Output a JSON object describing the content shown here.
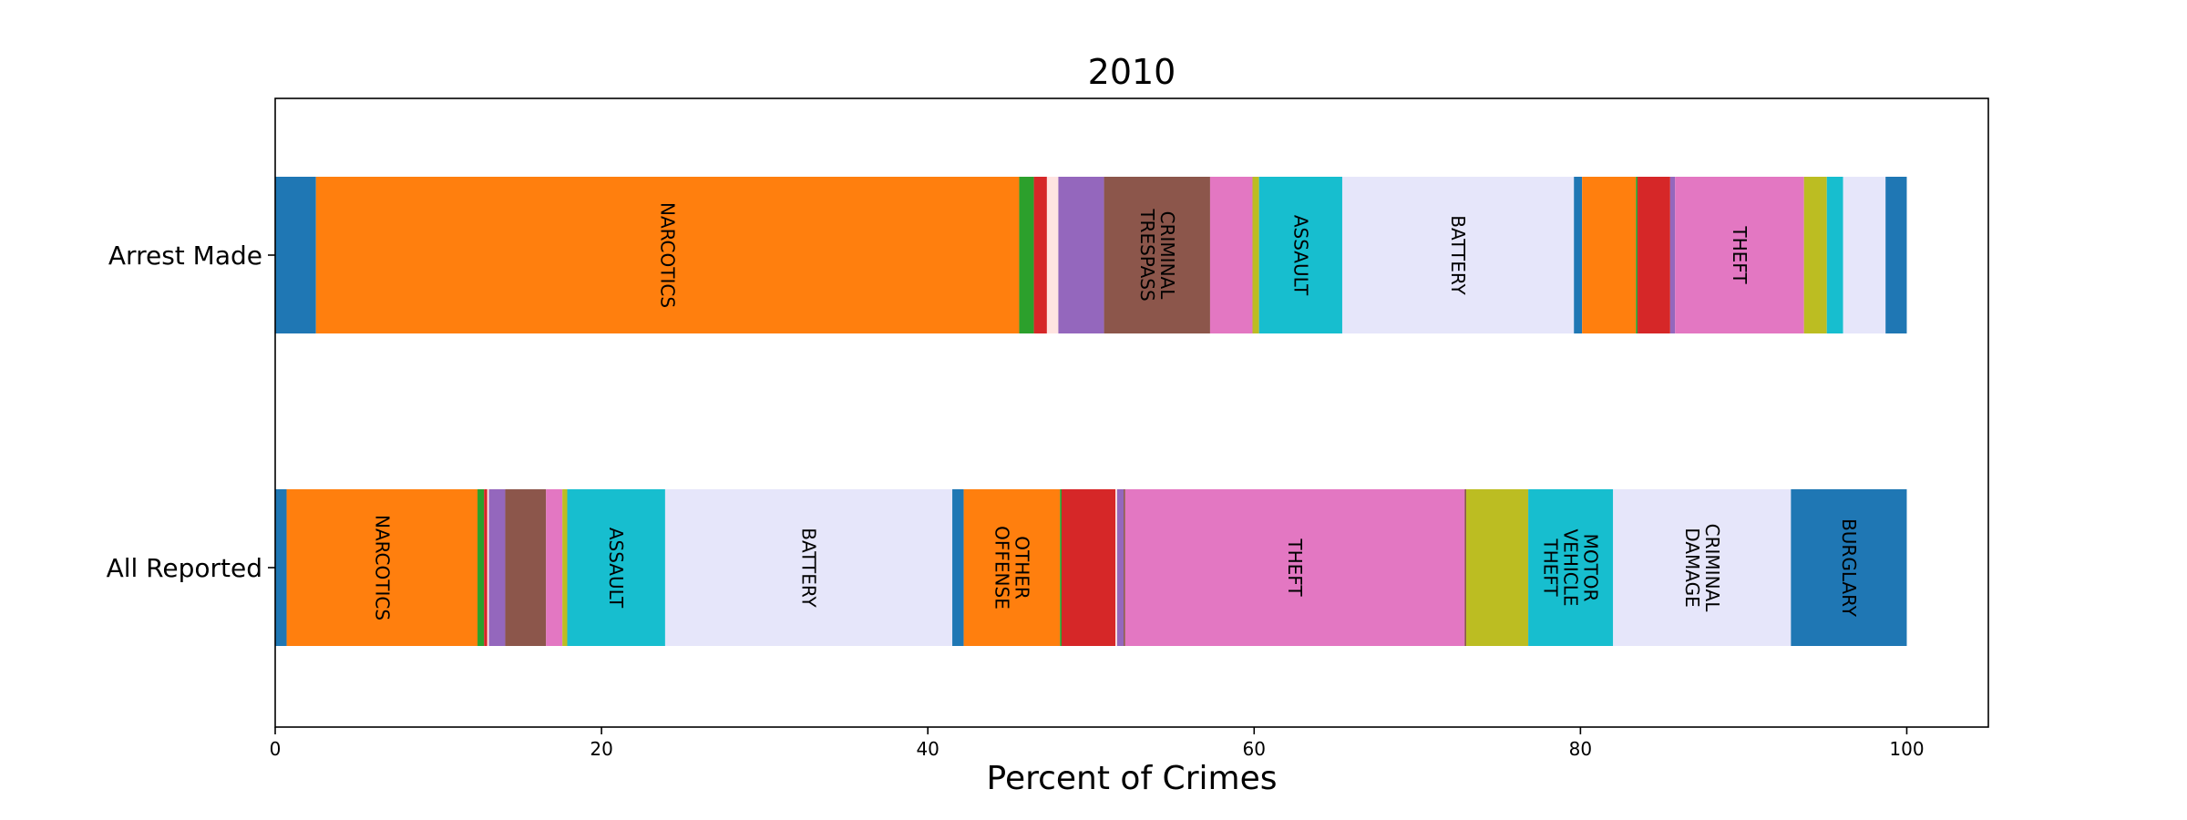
{
  "chart_data": {
    "type": "bar",
    "orientation": "horizontal",
    "stacked": true,
    "title": "2010",
    "xlabel": "Percent of Crimes",
    "ylabel": "",
    "xlim": [
      0,
      105
    ],
    "xticks": [
      0,
      20,
      40,
      60,
      80,
      100
    ],
    "grid": false,
    "legend": "none",
    "bars": [
      {
        "name": "All Reported",
        "segments": [
          {
            "start": 0.0,
            "end": 0.7,
            "color": "#1f77b4",
            "label": ""
          },
          {
            "start": 0.7,
            "end": 12.4,
            "color": "#ff7f0e",
            "label": "NARCOTICS"
          },
          {
            "start": 12.4,
            "end": 12.8,
            "color": "#2ca02c",
            "label": ""
          },
          {
            "start": 12.8,
            "end": 13.0,
            "color": "#d62728",
            "label": ""
          },
          {
            "start": 13.0,
            "end": 13.1,
            "color": "#ffe4e1",
            "label": ""
          },
          {
            "start": 13.1,
            "end": 14.1,
            "color": "#9467bd",
            "label": ""
          },
          {
            "start": 14.1,
            "end": 16.6,
            "color": "#8c564b",
            "label": ""
          },
          {
            "start": 16.6,
            "end": 17.6,
            "color": "#e377c2",
            "label": ""
          },
          {
            "start": 17.6,
            "end": 17.9,
            "color": "#bcbd22",
            "label": ""
          },
          {
            "start": 17.9,
            "end": 23.9,
            "color": "#17becf",
            "label": "ASSAULT"
          },
          {
            "start": 23.9,
            "end": 41.5,
            "color": "#e6e6fa",
            "label": "BATTERY"
          },
          {
            "start": 41.5,
            "end": 42.2,
            "color": "#1f77b4",
            "label": ""
          },
          {
            "start": 42.2,
            "end": 48.1,
            "color": "#ff7f0e",
            "label": "OTHER OFFENSE"
          },
          {
            "start": 48.1,
            "end": 48.2,
            "color": "#2ca02c",
            "label": ""
          },
          {
            "start": 48.2,
            "end": 51.5,
            "color": "#d62728",
            "label": ""
          },
          {
            "start": 51.5,
            "end": 51.6,
            "color": "#ffe4e1",
            "label": ""
          },
          {
            "start": 51.6,
            "end": 52.0,
            "color": "#9467bd",
            "label": ""
          },
          {
            "start": 52.0,
            "end": 52.1,
            "color": "#8c564b",
            "label": ""
          },
          {
            "start": 52.1,
            "end": 72.9,
            "color": "#e377c2",
            "label": "THEFT"
          },
          {
            "start": 72.9,
            "end": 73.0,
            "color": "#8c564b",
            "label": ""
          },
          {
            "start": 73.0,
            "end": 76.8,
            "color": "#bcbd22",
            "label": ""
          },
          {
            "start": 76.8,
            "end": 82.0,
            "color": "#17becf",
            "label": "MOTOR VEHICLE THEFT"
          },
          {
            "start": 82.0,
            "end": 92.9,
            "color": "#e6e6fa",
            "label": "CRIMINAL DAMAGE"
          },
          {
            "start": 92.9,
            "end": 100.0,
            "color": "#1f77b4",
            "label": "BURGLARY"
          }
        ]
      },
      {
        "name": "Arrest Made",
        "segments": [
          {
            "start": 0.0,
            "end": 2.5,
            "color": "#1f77b4",
            "label": ""
          },
          {
            "start": 2.5,
            "end": 45.6,
            "color": "#ff7f0e",
            "label": "NARCOTICS"
          },
          {
            "start": 45.6,
            "end": 46.5,
            "color": "#2ca02c",
            "label": ""
          },
          {
            "start": 46.5,
            "end": 47.3,
            "color": "#d62728",
            "label": ""
          },
          {
            "start": 47.3,
            "end": 48.0,
            "color": "#ffe4e1",
            "label": ""
          },
          {
            "start": 48.0,
            "end": 50.8,
            "color": "#9467bd",
            "label": ""
          },
          {
            "start": 50.8,
            "end": 57.3,
            "color": "#8c564b",
            "label": "CRIMINAL TRESPASS"
          },
          {
            "start": 57.3,
            "end": 59.9,
            "color": "#e377c2",
            "label": ""
          },
          {
            "start": 59.9,
            "end": 60.3,
            "color": "#bcbd22",
            "label": ""
          },
          {
            "start": 60.3,
            "end": 65.4,
            "color": "#17becf",
            "label": "ASSAULT"
          },
          {
            "start": 65.4,
            "end": 79.6,
            "color": "#e6e6fa",
            "label": "BATTERY"
          },
          {
            "start": 79.6,
            "end": 80.1,
            "color": "#1f77b4",
            "label": ""
          },
          {
            "start": 80.1,
            "end": 83.4,
            "color": "#ff7f0e",
            "label": ""
          },
          {
            "start": 83.4,
            "end": 83.5,
            "color": "#2ca02c",
            "label": ""
          },
          {
            "start": 83.5,
            "end": 85.5,
            "color": "#d62728",
            "label": ""
          },
          {
            "start": 85.5,
            "end": 85.8,
            "color": "#9467bd",
            "label": ""
          },
          {
            "start": 85.8,
            "end": 93.7,
            "color": "#e377c2",
            "label": "THEFT"
          },
          {
            "start": 93.7,
            "end": 95.1,
            "color": "#bcbd22",
            "label": ""
          },
          {
            "start": 95.1,
            "end": 96.1,
            "color": "#17becf",
            "label": ""
          },
          {
            "start": 96.1,
            "end": 98.7,
            "color": "#e6e6fa",
            "label": ""
          },
          {
            "start": 98.7,
            "end": 100.0,
            "color": "#1f77b4",
            "label": ""
          }
        ]
      }
    ]
  }
}
